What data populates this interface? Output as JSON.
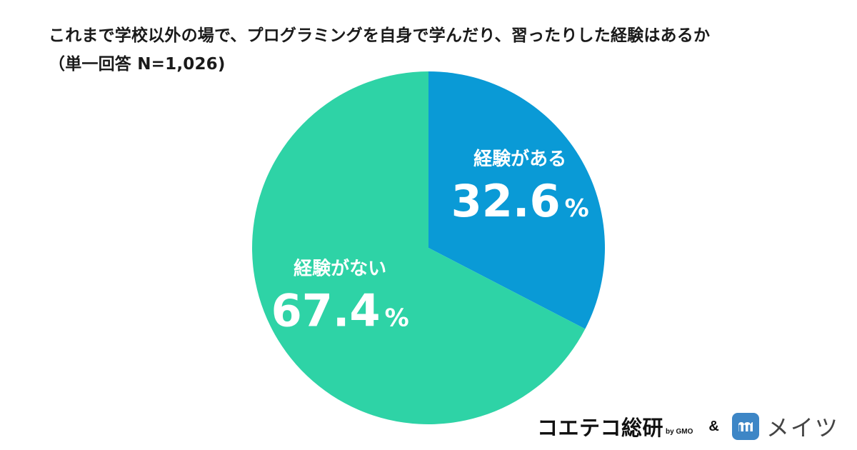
{
  "title": {
    "line1": "これまで学校以外の場で、プログラミングを自身で学んだり、習ったりした経験はあるか",
    "line2": "（単一回答 N=1,026)"
  },
  "chart_data": {
    "type": "pie",
    "title": "これまで学校以外の場で、プログラミングを自身で学んだり、習ったりした経験はあるか",
    "subtitle": "（単一回答 N=1,026)",
    "slices": [
      {
        "label": "経験がある",
        "value": 32.6,
        "display": "32.6",
        "unit": "%",
        "color": "#0a9ad6"
      },
      {
        "label": "経験がない",
        "value": 67.4,
        "display": "67.4",
        "unit": "%",
        "color": "#2ed3a6"
      }
    ],
    "start": "12 o'clock",
    "direction": "clockwise",
    "legend": "none"
  },
  "footer": {
    "brand1": "コエテコ総研",
    "brand1_sub": "by GMO",
    "amp": "&",
    "brand2": "メイツ",
    "brand2_icon": "mates-logo-icon"
  }
}
